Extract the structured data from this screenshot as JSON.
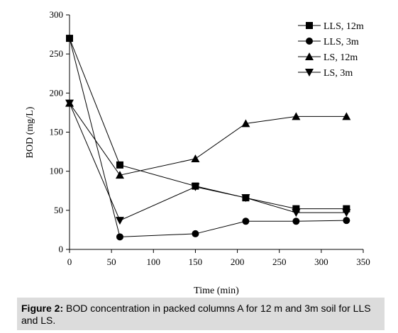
{
  "figure": {
    "caption_label": "Figure 2:",
    "caption_text": " BOD concentration in packed columns A for 12 m and 3m soil for LLS and LS."
  },
  "chart_data": {
    "type": "line",
    "xlabel": "Time (min)",
    "ylabel": "BOD (mg/L)",
    "xlim": [
      0,
      350
    ],
    "ylim": [
      0,
      300
    ],
    "xticks": [
      0,
      50,
      100,
      150,
      200,
      250,
      300,
      350
    ],
    "yticks": [
      0,
      50,
      100,
      150,
      200,
      250,
      300
    ],
    "grid": false,
    "legend_position": "top-right",
    "series": [
      {
        "name": "LLS, 12m",
        "marker": "square",
        "x": [
          0,
          60,
          150,
          210,
          270,
          330
        ],
        "y": [
          270,
          108,
          81,
          66,
          52,
          52
        ]
      },
      {
        "name": "LLS, 3m",
        "marker": "circle",
        "x": [
          0,
          60,
          150,
          210,
          270,
          330
        ],
        "y": [
          270,
          16,
          20,
          36,
          36,
          37
        ]
      },
      {
        "name": "LS, 12m",
        "marker": "triangle-up",
        "x": [
          0,
          60,
          150,
          210,
          270,
          330
        ],
        "y": [
          187,
          95,
          116,
          161,
          170,
          170
        ]
      },
      {
        "name": "LS, 3m",
        "marker": "triangle-down",
        "x": [
          0,
          60,
          150,
          210,
          270,
          330
        ],
        "y": [
          187,
          37,
          80,
          66,
          47,
          47
        ]
      }
    ]
  }
}
